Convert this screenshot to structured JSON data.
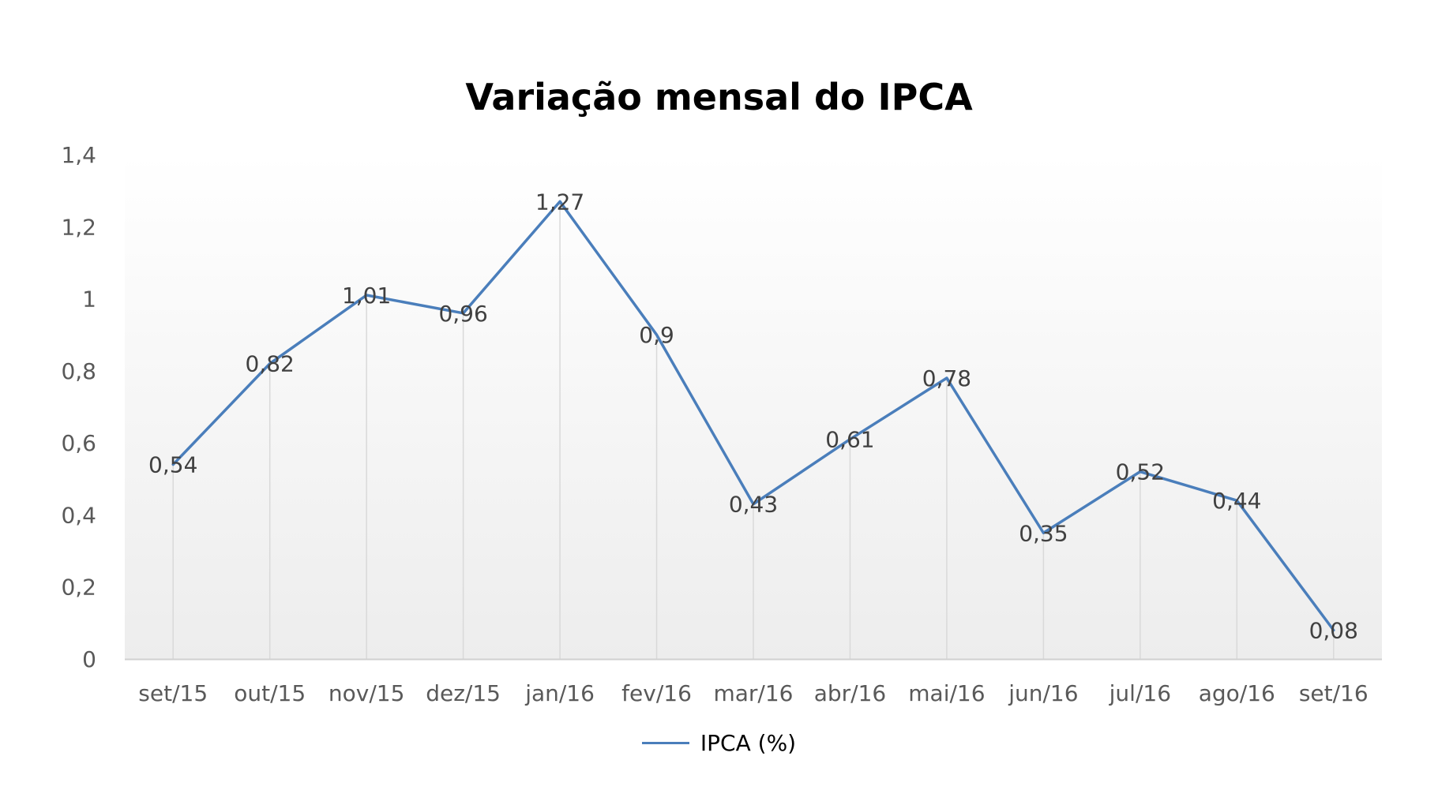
{
  "chart_data": {
    "type": "line",
    "title": "Variação mensal do IPCA",
    "xlabel": "",
    "ylabel": "",
    "categories": [
      "set/15",
      "out/15",
      "nov/15",
      "dez/15",
      "jan/16",
      "fev/16",
      "mar/16",
      "abr/16",
      "mai/16",
      "jun/16",
      "jul/16",
      "ago/16",
      "set/16"
    ],
    "series": [
      {
        "name": "IPCA (%)",
        "values": [
          0.54,
          0.82,
          1.01,
          0.96,
          1.27,
          0.9,
          0.43,
          0.61,
          0.78,
          0.35,
          0.52,
          0.44,
          0.08
        ],
        "labels": [
          "0,54",
          "0,82",
          "1,01",
          "0,96",
          "1,27",
          "0,9",
          "0,43",
          "0,61",
          "0,78",
          "0,35",
          "0,52",
          "0,44",
          "0,08"
        ],
        "color": "#4a7ebb"
      }
    ],
    "ylim": [
      0,
      1.4
    ],
    "yticks": [
      0,
      0.2,
      0.4,
      0.6,
      0.8,
      1,
      1.2,
      1.4
    ],
    "ytick_labels": [
      "0",
      "0,2",
      "0,4",
      "0,6",
      "0,8",
      "1",
      "1,2",
      "1,4"
    ],
    "grid": false,
    "drop_lines": true,
    "legend_position": "bottom"
  }
}
